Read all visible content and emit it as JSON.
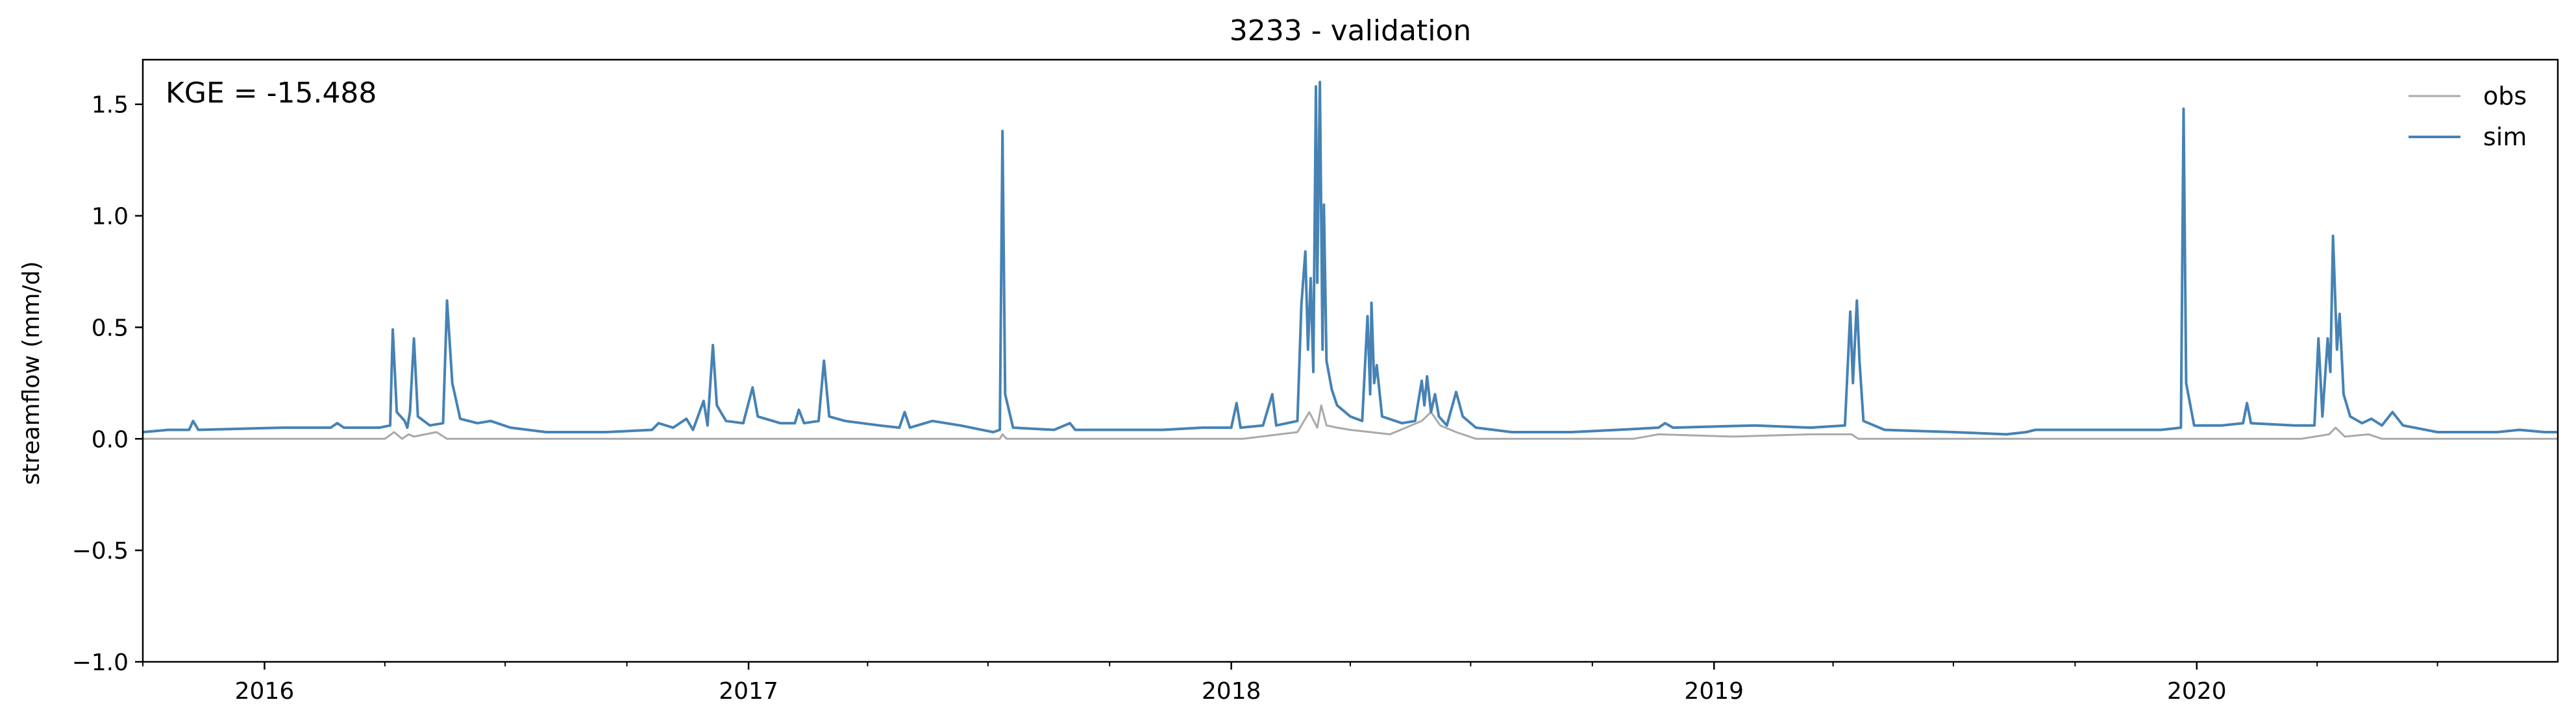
{
  "chart_data": {
    "type": "line",
    "title": "3233 - validation",
    "ylabel": "streamflow (mm/d)",
    "xlabel": "",
    "annotation": "KGE = -15.488",
    "xlim": [
      "2015-10-01",
      "2020-09-30"
    ],
    "ylim": [
      -1.0,
      1.7
    ],
    "yticks": [
      -1.0,
      -0.5,
      0.0,
      0.5,
      1.0,
      1.5
    ],
    "ytick_labels": [
      "−1.0",
      "−0.5",
      "0.0",
      "0.5",
      "1.0",
      "1.5"
    ],
    "xticks": [
      "2016-01-01",
      "2017-01-01",
      "2018-01-01",
      "2019-01-01",
      "2020-01-01"
    ],
    "xtick_labels": [
      "2016",
      "2017",
      "2018",
      "2019",
      "2020"
    ],
    "grid": false,
    "legend_position": "top-right",
    "series": [
      {
        "name": "obs",
        "color": "#a9a9a9",
        "points": [
          [
            "2015-10-01",
            0.0
          ],
          [
            "2016-04-01",
            0.0
          ],
          [
            "2016-04-08",
            0.03
          ],
          [
            "2016-04-14",
            0.0
          ],
          [
            "2016-04-19",
            0.02
          ],
          [
            "2016-04-23",
            0.01
          ],
          [
            "2016-05-10",
            0.03
          ],
          [
            "2016-05-18",
            0.0
          ],
          [
            "2017-07-10",
            0.0
          ],
          [
            "2017-07-12",
            0.02
          ],
          [
            "2017-07-15",
            0.0
          ],
          [
            "2018-01-10",
            0.0
          ],
          [
            "2018-02-20",
            0.03
          ],
          [
            "2018-03-01",
            0.12
          ],
          [
            "2018-03-07",
            0.05
          ],
          [
            "2018-03-10",
            0.15
          ],
          [
            "2018-03-14",
            0.06
          ],
          [
            "2018-03-22",
            0.05
          ],
          [
            "2018-04-01",
            0.04
          ],
          [
            "2018-05-01",
            0.02
          ],
          [
            "2018-05-25",
            0.08
          ],
          [
            "2018-06-01",
            0.12
          ],
          [
            "2018-06-08",
            0.06
          ],
          [
            "2018-06-20",
            0.03
          ],
          [
            "2018-07-05",
            0.0
          ],
          [
            "2018-11-01",
            0.0
          ],
          [
            "2018-11-20",
            0.02
          ],
          [
            "2019-01-15",
            0.01
          ],
          [
            "2019-03-15",
            0.02
          ],
          [
            "2019-04-15",
            0.02
          ],
          [
            "2019-04-20",
            0.0
          ],
          [
            "2020-03-20",
            0.0
          ],
          [
            "2020-04-10",
            0.02
          ],
          [
            "2020-04-15",
            0.05
          ],
          [
            "2020-04-22",
            0.01
          ],
          [
            "2020-05-10",
            0.02
          ],
          [
            "2020-05-20",
            0.0
          ],
          [
            "2020-09-30",
            0.0
          ]
        ]
      },
      {
        "name": "sim",
        "color": "#4682b4",
        "points": [
          [
            "2015-10-01",
            0.03
          ],
          [
            "2015-10-20",
            0.04
          ],
          [
            "2015-11-05",
            0.04
          ],
          [
            "2015-11-08",
            0.08
          ],
          [
            "2015-11-12",
            0.04
          ],
          [
            "2016-01-15",
            0.05
          ],
          [
            "2016-02-20",
            0.05
          ],
          [
            "2016-02-25",
            0.07
          ],
          [
            "2016-03-01",
            0.05
          ],
          [
            "2016-03-28",
            0.05
          ],
          [
            "2016-04-05",
            0.06
          ],
          [
            "2016-04-07",
            0.49
          ],
          [
            "2016-04-10",
            0.12
          ],
          [
            "2016-04-16",
            0.08
          ],
          [
            "2016-04-18",
            0.05
          ],
          [
            "2016-04-20",
            0.12
          ],
          [
            "2016-04-23",
            0.45
          ],
          [
            "2016-04-26",
            0.1
          ],
          [
            "2016-05-05",
            0.06
          ],
          [
            "2016-05-15",
            0.07
          ],
          [
            "2016-05-18",
            0.62
          ],
          [
            "2016-05-22",
            0.25
          ],
          [
            "2016-05-28",
            0.09
          ],
          [
            "2016-06-10",
            0.07
          ],
          [
            "2016-06-20",
            0.08
          ],
          [
            "2016-07-05",
            0.05
          ],
          [
            "2016-08-01",
            0.03
          ],
          [
            "2016-09-15",
            0.03
          ],
          [
            "2016-10-20",
            0.04
          ],
          [
            "2016-10-25",
            0.07
          ],
          [
            "2016-11-05",
            0.05
          ],
          [
            "2016-11-15",
            0.09
          ],
          [
            "2016-11-20",
            0.04
          ],
          [
            "2016-11-28",
            0.17
          ],
          [
            "2016-12-01",
            0.06
          ],
          [
            "2016-12-05",
            0.42
          ],
          [
            "2016-12-08",
            0.15
          ],
          [
            "2016-12-15",
            0.08
          ],
          [
            "2016-12-28",
            0.07
          ],
          [
            "2017-01-04",
            0.23
          ],
          [
            "2017-01-08",
            0.1
          ],
          [
            "2017-01-25",
            0.07
          ],
          [
            "2017-02-05",
            0.07
          ],
          [
            "2017-02-08",
            0.13
          ],
          [
            "2017-02-12",
            0.07
          ],
          [
            "2017-02-23",
            0.08
          ],
          [
            "2017-02-27",
            0.35
          ],
          [
            "2017-03-03",
            0.1
          ],
          [
            "2017-03-15",
            0.08
          ],
          [
            "2017-04-10",
            0.06
          ],
          [
            "2017-04-25",
            0.05
          ],
          [
            "2017-04-29",
            0.12
          ],
          [
            "2017-05-03",
            0.05
          ],
          [
            "2017-05-20",
            0.08
          ],
          [
            "2017-06-10",
            0.06
          ],
          [
            "2017-07-05",
            0.03
          ],
          [
            "2017-07-10",
            0.04
          ],
          [
            "2017-07-12",
            1.38
          ],
          [
            "2017-07-14",
            0.2
          ],
          [
            "2017-07-20",
            0.05
          ],
          [
            "2017-08-20",
            0.04
          ],
          [
            "2017-09-01",
            0.07
          ],
          [
            "2017-09-05",
            0.04
          ],
          [
            "2017-11-10",
            0.04
          ],
          [
            "2017-12-10",
            0.05
          ],
          [
            "2018-01-01",
            0.05
          ],
          [
            "2018-01-05",
            0.16
          ],
          [
            "2018-01-08",
            0.05
          ],
          [
            "2018-01-25",
            0.06
          ],
          [
            "2018-02-01",
            0.2
          ],
          [
            "2018-02-04",
            0.06
          ],
          [
            "2018-02-20",
            0.08
          ],
          [
            "2018-02-23",
            0.6
          ],
          [
            "2018-02-26",
            0.84
          ],
          [
            "2018-02-28",
            0.4
          ],
          [
            "2018-03-02",
            0.72
          ],
          [
            "2018-03-04",
            0.3
          ],
          [
            "2018-03-06",
            1.58
          ],
          [
            "2018-03-07",
            0.7
          ],
          [
            "2018-03-09",
            1.6
          ],
          [
            "2018-03-11",
            0.4
          ],
          [
            "2018-03-12",
            1.05
          ],
          [
            "2018-03-14",
            0.35
          ],
          [
            "2018-03-18",
            0.22
          ],
          [
            "2018-03-22",
            0.15
          ],
          [
            "2018-04-01",
            0.1
          ],
          [
            "2018-04-10",
            0.08
          ],
          [
            "2018-04-14",
            0.55
          ],
          [
            "2018-04-16",
            0.2
          ],
          [
            "2018-04-17",
            0.61
          ],
          [
            "2018-04-19",
            0.25
          ],
          [
            "2018-04-21",
            0.33
          ],
          [
            "2018-04-25",
            0.1
          ],
          [
            "2018-05-10",
            0.07
          ],
          [
            "2018-05-20",
            0.08
          ],
          [
            "2018-05-25",
            0.26
          ],
          [
            "2018-05-27",
            0.15
          ],
          [
            "2018-05-29",
            0.28
          ],
          [
            "2018-06-01",
            0.12
          ],
          [
            "2018-06-04",
            0.2
          ],
          [
            "2018-06-07",
            0.1
          ],
          [
            "2018-06-13",
            0.06
          ],
          [
            "2018-06-20",
            0.21
          ],
          [
            "2018-06-25",
            0.1
          ],
          [
            "2018-07-05",
            0.05
          ],
          [
            "2018-08-01",
            0.03
          ],
          [
            "2018-09-15",
            0.03
          ],
          [
            "2018-10-20",
            0.04
          ],
          [
            "2018-11-20",
            0.05
          ],
          [
            "2018-11-25",
            0.07
          ],
          [
            "2018-12-01",
            0.05
          ],
          [
            "2019-02-01",
            0.06
          ],
          [
            "2019-03-15",
            0.05
          ],
          [
            "2019-04-10",
            0.06
          ],
          [
            "2019-04-14",
            0.57
          ],
          [
            "2019-04-16",
            0.25
          ],
          [
            "2019-04-19",
            0.62
          ],
          [
            "2019-04-21",
            0.35
          ],
          [
            "2019-04-24",
            0.08
          ],
          [
            "2019-05-10",
            0.04
          ],
          [
            "2019-07-01",
            0.03
          ],
          [
            "2019-08-10",
            0.02
          ],
          [
            "2019-08-25",
            0.03
          ],
          [
            "2019-09-01",
            0.04
          ],
          [
            "2019-11-01",
            0.04
          ],
          [
            "2019-12-05",
            0.04
          ],
          [
            "2019-12-20",
            0.05
          ],
          [
            "2019-12-22",
            1.48
          ],
          [
            "2019-12-24",
            0.25
          ],
          [
            "2019-12-30",
            0.06
          ],
          [
            "2020-01-20",
            0.06
          ],
          [
            "2020-02-05",
            0.07
          ],
          [
            "2020-02-08",
            0.16
          ],
          [
            "2020-02-11",
            0.07
          ],
          [
            "2020-03-15",
            0.06
          ],
          [
            "2020-03-30",
            0.06
          ],
          [
            "2020-04-02",
            0.45
          ],
          [
            "2020-04-05",
            0.1
          ],
          [
            "2020-04-09",
            0.45
          ],
          [
            "2020-04-11",
            0.3
          ],
          [
            "2020-04-13",
            0.91
          ],
          [
            "2020-04-16",
            0.4
          ],
          [
            "2020-04-18",
            0.56
          ],
          [
            "2020-04-21",
            0.2
          ],
          [
            "2020-04-26",
            0.1
          ],
          [
            "2020-05-05",
            0.07
          ],
          [
            "2020-05-12",
            0.09
          ],
          [
            "2020-05-20",
            0.06
          ],
          [
            "2020-05-28",
            0.12
          ],
          [
            "2020-06-05",
            0.06
          ],
          [
            "2020-07-01",
            0.03
          ],
          [
            "2020-08-15",
            0.03
          ],
          [
            "2020-09-01",
            0.04
          ],
          [
            "2020-09-20",
            0.03
          ],
          [
            "2020-09-30",
            0.03
          ]
        ]
      }
    ]
  }
}
